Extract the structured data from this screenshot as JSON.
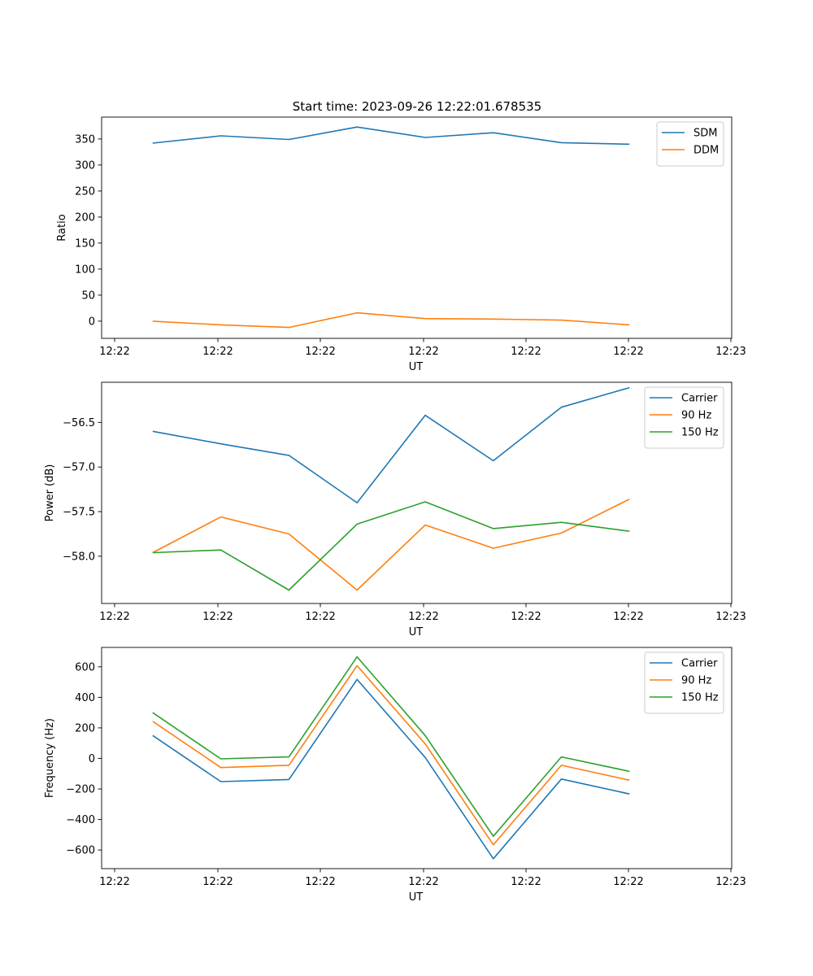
{
  "figure": {
    "title": "Start time: 2023-09-26 12:22:01.678535"
  },
  "chart_data": [
    {
      "type": "line",
      "xlabel": "UT",
      "ylabel": "Ratio",
      "xticks": [
        "12:22",
        "12:22",
        "12:22",
        "12:22",
        "12:22",
        "12:22",
        "12:23"
      ],
      "yticks": [
        0,
        50,
        100,
        150,
        200,
        250,
        300,
        350
      ],
      "ytick_labels": [
        "0",
        "50",
        "100",
        "150",
        "200",
        "250",
        "300",
        "350"
      ],
      "xlim": [
        -0.75,
        8.5
      ],
      "ylim": [
        -33,
        392
      ],
      "x": [
        0,
        1,
        2,
        3,
        4,
        5,
        6,
        7
      ],
      "legend": "top-right",
      "series": [
        {
          "name": "SDM",
          "color": "#1f77b4",
          "values": [
            342,
            356,
            349,
            373,
            353,
            362,
            343,
            340
          ]
        },
        {
          "name": "DDM",
          "color": "#ff7f0e",
          "values": [
            0,
            -7,
            -12,
            16,
            5,
            4,
            2,
            -7
          ]
        }
      ]
    },
    {
      "type": "line",
      "xlabel": "UT",
      "ylabel": "Power (dB)",
      "xticks": [
        "12:22",
        "12:22",
        "12:22",
        "12:22",
        "12:22",
        "12:22",
        "12:23"
      ],
      "yticks": [
        -58.0,
        -57.5,
        -57.0,
        -56.5
      ],
      "ytick_labels": [
        "−58.0",
        "−57.5",
        "−57.0",
        "−56.5"
      ],
      "xlim": [
        -0.75,
        8.5
      ],
      "ylim": [
        -58.53,
        -56.05
      ],
      "x": [
        0,
        1,
        2,
        3,
        4,
        5,
        6,
        7
      ],
      "legend": "top-right",
      "series": [
        {
          "name": "Carrier",
          "color": "#1f77b4",
          "values": [
            -56.6,
            -56.74,
            -56.87,
            -57.4,
            -56.42,
            -56.93,
            -56.33,
            -56.11
          ]
        },
        {
          "name": "90 Hz",
          "color": "#ff7f0e",
          "values": [
            -57.96,
            -57.56,
            -57.75,
            -58.38,
            -57.65,
            -57.91,
            -57.74,
            -57.36
          ]
        },
        {
          "name": "150 Hz",
          "color": "#2ca02c",
          "values": [
            -57.96,
            -57.93,
            -58.38,
            -57.64,
            -57.39,
            -57.69,
            -57.62,
            -57.72
          ]
        }
      ]
    },
    {
      "type": "line",
      "xlabel": "UT",
      "ylabel": "Frequency (Hz)",
      "xticks": [
        "12:22",
        "12:22",
        "12:22",
        "12:22",
        "12:22",
        "12:22",
        "12:23"
      ],
      "yticks": [
        -600,
        -400,
        -200,
        0,
        200,
        400,
        600
      ],
      "ytick_labels": [
        "−600",
        "−400",
        "−200",
        "0",
        "200",
        "400",
        "600"
      ],
      "xlim": [
        -0.75,
        8.5
      ],
      "ylim": [
        -722,
        727
      ],
      "x": [
        0,
        1,
        2,
        3,
        4,
        5,
        6,
        7
      ],
      "legend": "top-right",
      "series": [
        {
          "name": "Carrier",
          "color": "#1f77b4",
          "values": [
            150,
            -152,
            -138,
            517,
            6,
            -657,
            -135,
            -233
          ]
        },
        {
          "name": "90 Hz",
          "color": "#ff7f0e",
          "values": [
            243,
            -60,
            -45,
            607,
            95,
            -566,
            -45,
            -143
          ]
        },
        {
          "name": "150 Hz",
          "color": "#2ca02c",
          "values": [
            300,
            -3,
            10,
            665,
            150,
            -510,
            10,
            -85
          ]
        }
      ]
    }
  ]
}
